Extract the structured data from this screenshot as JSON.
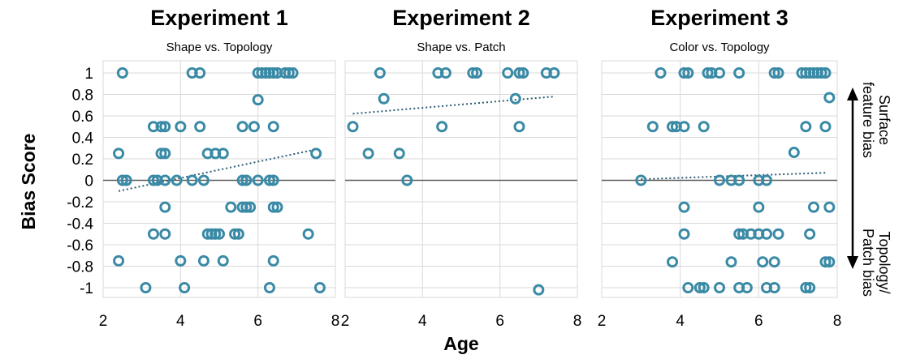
{
  "colors": {
    "marker": "#3a8aa6",
    "trend": "#2a5a72",
    "grid": "#d9d9d9",
    "zero": "#595959"
  },
  "figure": {
    "ylabel": "Bias Score",
    "xlabel": "Age",
    "side_label_top": [
      "Surface",
      "feature bias"
    ],
    "side_label_bottom": [
      "Topology/",
      "Patch bias"
    ]
  },
  "chart_data": [
    {
      "type": "scatter",
      "title": "Experiment 1",
      "subtitle": "Shape vs. Topology",
      "xlim": [
        2,
        8
      ],
      "ylim": [
        -1,
        1
      ],
      "xticks": [
        "2",
        "4",
        "6",
        "8"
      ],
      "yticks": [
        "-1",
        "-0.8",
        "-0.6",
        "-0.4",
        "-0.2",
        "0",
        "0.2",
        "0.4",
        "0.6",
        "0.8",
        "1"
      ],
      "trendline": [
        [
          2.4,
          -0.1
        ],
        [
          7.4,
          0.28
        ]
      ],
      "x": [
        2.5,
        4.3,
        4.5,
        6.0,
        6.1,
        6.2,
        6.3,
        6.4,
        6.5,
        6.7,
        6.8,
        6.9,
        6.0,
        3.3,
        3.5,
        3.6,
        4.0,
        4.5,
        5.6,
        5.9,
        6.4,
        2.4,
        3.5,
        3.6,
        4.7,
        4.9,
        5.1,
        7.5,
        2.5,
        2.6,
        3.3,
        3.4,
        3.6,
        3.9,
        4.3,
        4.6,
        5.6,
        5.7,
        6.0,
        6.3,
        6.4,
        3.6,
        5.3,
        5.6,
        5.7,
        5.8,
        6.4,
        6.5,
        3.3,
        3.6,
        4.7,
        4.8,
        4.9,
        5.0,
        5.4,
        5.5,
        7.3,
        2.4,
        4.0,
        4.6,
        5.1,
        6.4,
        3.1,
        4.1,
        6.3,
        7.6
      ],
      "y": [
        1,
        1,
        1,
        1,
        1,
        1,
        1,
        1,
        1,
        1,
        1,
        1,
        0.75,
        0.5,
        0.5,
        0.5,
        0.5,
        0.5,
        0.5,
        0.5,
        0.5,
        0.25,
        0.25,
        0.25,
        0.25,
        0.25,
        0.25,
        0.25,
        0,
        0,
        0,
        0,
        0,
        0,
        0,
        0,
        0,
        0,
        0,
        0,
        0,
        -0.25,
        -0.25,
        -0.25,
        -0.25,
        -0.25,
        -0.25,
        -0.25,
        -0.5,
        -0.5,
        -0.5,
        -0.5,
        -0.5,
        -0.5,
        -0.5,
        -0.5,
        -0.5,
        -0.75,
        -0.75,
        -0.75,
        -0.75,
        -0.75,
        -1,
        -1,
        -1,
        -1
      ]
    },
    {
      "type": "scatter",
      "title": "Experiment 2",
      "subtitle": "Shape vs. Patch",
      "xlim": [
        2,
        8
      ],
      "ylim": [
        -1,
        1
      ],
      "xticks": [
        "2",
        "4",
        "6",
        "8"
      ],
      "yticks": [],
      "trendline": [
        [
          2.2,
          0.62
        ],
        [
          7.4,
          0.78
        ]
      ],
      "x": [
        2.9,
        4.4,
        4.6,
        5.3,
        5.4,
        6.2,
        6.5,
        6.6,
        7.2,
        7.4,
        3.0,
        6.4,
        2.2,
        4.5,
        6.5,
        2.6,
        3.4,
        3.6,
        7.0
      ],
      "y": [
        1,
        1,
        1,
        1,
        1,
        1,
        1,
        1,
        1,
        1,
        0.76,
        0.76,
        0.5,
        0.5,
        0.5,
        0.25,
        0.25,
        0,
        -1.02
      ]
    },
    {
      "type": "scatter",
      "title": "Experiment 3",
      "subtitle": "Color vs. Topology",
      "xlim": [
        2,
        8
      ],
      "ylim": [
        -1,
        1
      ],
      "xticks": [
        "2",
        "4",
        "6",
        "8"
      ],
      "yticks": [],
      "trendline": [
        [
          3.0,
          0.01
        ],
        [
          7.7,
          0.07
        ]
      ],
      "x": [
        3.5,
        4.1,
        4.2,
        4.7,
        4.8,
        5.0,
        5.5,
        6.4,
        6.5,
        7.1,
        7.2,
        7.3,
        7.4,
        7.5,
        7.6,
        7.7,
        7.8,
        3.3,
        3.8,
        3.9,
        4.1,
        4.6,
        7.2,
        7.7,
        6.9,
        3.0,
        5.0,
        5.3,
        5.5,
        6.0,
        6.2,
        4.1,
        6.0,
        7.4,
        7.8,
        4.1,
        5.5,
        5.6,
        5.8,
        6.0,
        6.2,
        6.5,
        7.3,
        3.8,
        5.3,
        6.1,
        6.4,
        7.7,
        7.8,
        4.2,
        4.5,
        4.6,
        5.0,
        5.5,
        5.7,
        6.2,
        6.4,
        7.2,
        7.3
      ],
      "y": [
        1,
        1,
        1,
        1,
        1,
        1,
        1,
        1,
        1,
        1,
        1,
        1,
        1,
        1,
        1,
        1,
        0.77,
        0.5,
        0.5,
        0.5,
        0.5,
        0.5,
        0.5,
        0.5,
        0.26,
        0,
        0,
        0,
        0,
        0,
        0,
        -0.25,
        -0.25,
        -0.25,
        -0.25,
        -0.5,
        -0.5,
        -0.5,
        -0.5,
        -0.5,
        -0.5,
        -0.5,
        -0.5,
        -0.76,
        -0.76,
        -0.76,
        -0.76,
        -0.76,
        -0.76,
        -1,
        -1,
        -1,
        -1,
        -1,
        -1,
        -1,
        -1,
        -1,
        -1
      ]
    }
  ]
}
